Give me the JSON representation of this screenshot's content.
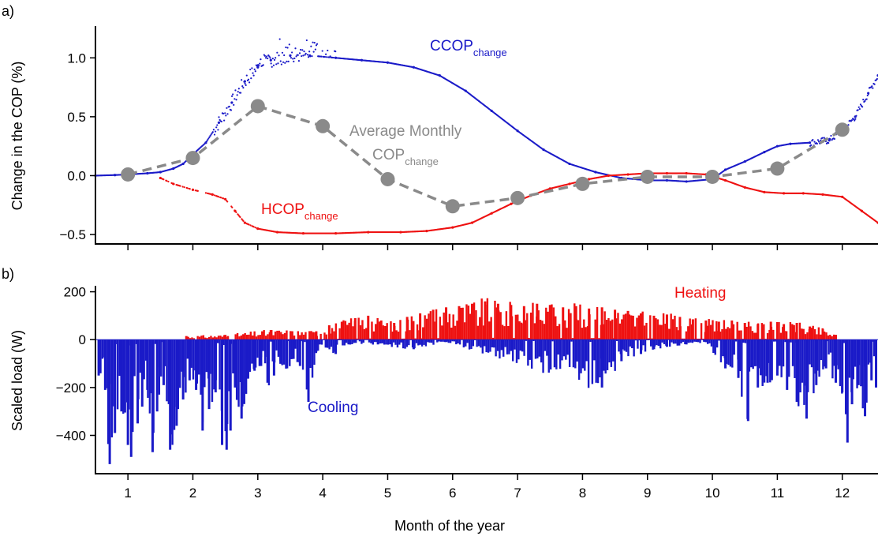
{
  "colors": {
    "cooling": "#1a1ac8",
    "heating": "#ee1111",
    "average": "#8a8a8a",
    "axis": "#000000"
  },
  "chart_data": [
    {
      "id": "a",
      "type": "scatter",
      "panel_label": "a)",
      "title": "",
      "xlabel": "",
      "ylabel": "Change in the COP (%)",
      "xlim": [
        0.5,
        12.55
      ],
      "ylim": [
        -0.58,
        1.27
      ],
      "y_ticks": [
        -0.5,
        0.0,
        0.5,
        1.0
      ],
      "y_tick_labels": [
        "−0.5",
        "0.0",
        "0.5",
        "1.0"
      ],
      "x_ticks": [
        1,
        2,
        3,
        4,
        5,
        6,
        7,
        8,
        9,
        10,
        11,
        12
      ],
      "annotations": {
        "ccop": {
          "main": "CCOP",
          "sub": "change"
        },
        "hcop": {
          "main": "HCOP",
          "sub": "change"
        },
        "avg_line1": "Average Monthly",
        "avg_line2": {
          "main": "COP",
          "sub": "change"
        }
      },
      "series": [
        {
          "name": "CCOP change",
          "style": "scatter",
          "color_key": "cooling",
          "x": [
            0.5,
            0.8,
            1.0,
            1.3,
            1.5,
            1.7,
            1.85,
            2.0,
            2.2,
            2.4,
            2.6,
            2.8,
            3.0,
            3.2,
            3.5,
            3.8,
            4.2,
            4.6,
            5.0,
            5.4,
            5.8,
            6.2,
            6.6,
            7.0,
            7.4,
            7.8,
            8.2,
            8.6,
            9.0,
            9.3,
            9.6,
            10.0,
            10.2,
            10.5,
            10.8,
            11.0,
            11.2,
            11.5,
            11.8,
            12.0,
            12.2,
            12.4,
            12.55
          ],
          "y": [
            0.0,
            0.005,
            0.01,
            0.02,
            0.03,
            0.06,
            0.1,
            0.18,
            0.28,
            0.45,
            0.62,
            0.8,
            0.92,
            0.98,
            1.02,
            1.02,
            1.0,
            0.98,
            0.96,
            0.92,
            0.85,
            0.72,
            0.55,
            0.38,
            0.22,
            0.1,
            0.03,
            -0.02,
            -0.04,
            -0.04,
            -0.05,
            -0.03,
            0.05,
            0.12,
            0.2,
            0.25,
            0.27,
            0.28,
            0.3,
            0.38,
            0.5,
            0.7,
            0.85
          ]
        },
        {
          "name": "HCOP change",
          "style": "scatter",
          "color_key": "heating",
          "x": [
            1.5,
            1.7,
            2.0,
            2.3,
            2.5,
            2.65,
            2.8,
            3.0,
            3.3,
            3.7,
            4.2,
            4.7,
            5.2,
            5.6,
            6.0,
            6.3,
            6.6,
            6.9,
            7.2,
            7.5,
            7.8,
            8.1,
            8.4,
            8.7,
            9.0,
            9.3,
            9.6,
            9.9,
            10.2,
            10.5,
            10.8,
            11.1,
            11.4,
            11.7,
            12.0,
            12.3,
            12.55
          ],
          "y": [
            -0.02,
            -0.07,
            -0.12,
            -0.16,
            -0.2,
            -0.3,
            -0.4,
            -0.45,
            -0.48,
            -0.49,
            -0.49,
            -0.48,
            -0.48,
            -0.47,
            -0.44,
            -0.4,
            -0.32,
            -0.24,
            -0.17,
            -0.11,
            -0.07,
            -0.03,
            0.0,
            0.01,
            0.02,
            0.02,
            0.02,
            0.01,
            -0.04,
            -0.1,
            -0.14,
            -0.15,
            -0.15,
            -0.16,
            -0.18,
            -0.3,
            -0.4
          ]
        },
        {
          "name": "Average Monthly COP change",
          "style": "line-markers",
          "color_key": "average",
          "x": [
            1,
            2,
            3,
            4,
            5,
            6,
            7,
            8,
            9,
            10,
            11,
            12
          ],
          "y": [
            0.01,
            0.15,
            0.59,
            0.42,
            -0.03,
            -0.26,
            -0.19,
            -0.07,
            -0.01,
            -0.01,
            0.06,
            0.39
          ]
        }
      ]
    },
    {
      "id": "b",
      "type": "bar",
      "panel_label": "b)",
      "title": "",
      "xlabel": "Month of the year",
      "ylabel": "Scaled load (W)",
      "xlim": [
        0.5,
        12.55
      ],
      "ylim": [
        -560,
        225
      ],
      "y_ticks": [
        -400,
        -200,
        0,
        200
      ],
      "y_tick_labels": [
        "−400",
        "−200",
        "0",
        "200"
      ],
      "x_ticks": [
        1,
        2,
        3,
        4,
        5,
        6,
        7,
        8,
        9,
        10,
        11,
        12
      ],
      "x_tick_labels": [
        "1",
        "2",
        "3",
        "4",
        "5",
        "6",
        "7",
        "8",
        "9",
        "10",
        "11",
        "12"
      ],
      "annotations": {
        "heating": "Heating",
        "cooling": "Cooling"
      },
      "series": [
        {
          "name": "Heating",
          "color_key": "heating",
          "x": [
            1.9,
            2.5,
            3.2,
            3.9,
            4.1,
            4.3,
            4.5,
            4.7,
            4.9,
            5.1,
            5.3,
            5.5,
            5.7,
            5.9,
            6.1,
            6.3,
            6.5,
            6.7,
            6.9,
            7.1,
            7.3,
            7.5,
            7.7,
            7.9,
            8.1,
            8.3,
            8.5,
            8.7,
            8.9,
            9.1,
            9.3,
            9.5,
            9.7,
            9.9,
            10.1,
            10.3,
            10.5,
            10.7,
            10.9,
            11.1,
            11.3,
            11.5,
            11.7,
            11.9
          ],
          "y": [
            15,
            20,
            40,
            35,
            60,
            75,
            90,
            100,
            80,
            70,
            95,
            110,
            125,
            135,
            140,
            150,
            160,
            150,
            145,
            140,
            150,
            145,
            135,
            140,
            130,
            135,
            125,
            120,
            110,
            100,
            105,
            95,
            85,
            80,
            75,
            80,
            70,
            65,
            75,
            65,
            70,
            55,
            45,
            20
          ]
        },
        {
          "name": "Cooling",
          "color_key": "cooling",
          "x": [
            0.55,
            0.65,
            0.72,
            0.8,
            0.9,
            1.0,
            1.05,
            1.15,
            1.22,
            1.3,
            1.38,
            1.45,
            1.55,
            1.65,
            1.75,
            1.85,
            1.95,
            2.05,
            2.15,
            2.25,
            2.35,
            2.45,
            2.52,
            2.58,
            2.65,
            2.75,
            2.85,
            2.95,
            3.05,
            3.15,
            3.25,
            3.35,
            3.45,
            3.55,
            3.65,
            3.78,
            3.9,
            4.05,
            4.2,
            4.4,
            4.85,
            5.4,
            5.9,
            8.3,
            8.6,
            8.9,
            9.1,
            9.3,
            9.6,
            9.9,
            10.2,
            10.4,
            10.55,
            10.7,
            10.85,
            11.0,
            11.15,
            11.3,
            11.45,
            11.6,
            11.75,
            11.9,
            12.0,
            12.08,
            12.15,
            12.25,
            12.35,
            12.45,
            12.52
          ],
          "y": [
            -150,
            -210,
            -520,
            -390,
            -300,
            -440,
            -490,
            -350,
            -280,
            -210,
            -470,
            -300,
            -190,
            -460,
            -360,
            -250,
            -170,
            -210,
            -380,
            -290,
            -220,
            -440,
            -460,
            -380,
            -200,
            -330,
            -160,
            -130,
            -110,
            -180,
            -150,
            -90,
            -120,
            -80,
            -110,
            -260,
            -50,
            -30,
            -60,
            -20,
            -20,
            -40,
            -10,
            -200,
            -90,
            -60,
            -40,
            -30,
            -20,
            -10,
            -120,
            -160,
            -340,
            -200,
            -180,
            -150,
            -210,
            -260,
            -330,
            -190,
            -120,
            -180,
            -220,
            -430,
            -270,
            -190,
            -320,
            -170,
            -200
          ]
        }
      ]
    }
  ]
}
